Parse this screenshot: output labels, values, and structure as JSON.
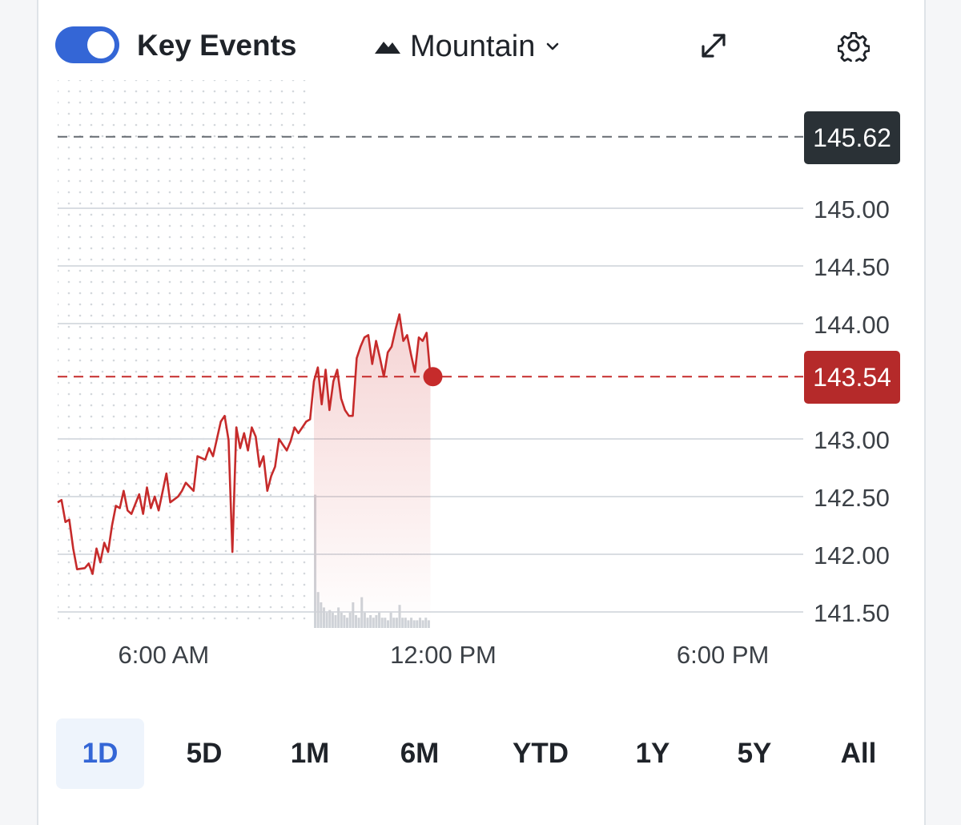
{
  "toolbar": {
    "key_events_label": "Key Events",
    "key_events_enabled": true,
    "chart_type_label": "Mountain",
    "expand_icon": "expand-icon",
    "settings_icon": "gear-icon",
    "mountain_icon": "mountain-icon",
    "dropdown_icon": "chevron-down-icon"
  },
  "colors": {
    "accent": "#3466d6",
    "line": "#c62b2b",
    "current_badge": "#b52a2a",
    "high_badge": "#2a3136",
    "grid": "#d9dde2",
    "volume": "#cfd3d8"
  },
  "badges": {
    "high": "145.62",
    "current": "143.54"
  },
  "chart_data": {
    "type": "area",
    "x_axis_type": "time",
    "x_ticks": [
      "6:00 AM",
      "12:00 PM",
      "6:00 PM"
    ],
    "y_ticks": [
      "145.00",
      "144.50",
      "144.00",
      "143.00",
      "142.50",
      "142.00",
      "141.50"
    ],
    "ylim": [
      141.5,
      145.62
    ],
    "xlim": [
      "4:00 AM",
      "8:00 PM"
    ],
    "grid": true,
    "reference_lines": [
      {
        "value": 145.62,
        "style": "dashed"
      },
      {
        "value": 143.54,
        "style": "dashed"
      }
    ],
    "premarket_shaded_until": "9:30 AM",
    "area_fill_from": "9:30 AM",
    "series": [
      {
        "x": [
          "4:00 AM",
          "4:05 AM",
          "4:10 AM",
          "4:15 AM",
          "4:20 AM",
          "4:25 AM",
          "4:35 AM",
          "4:40 AM",
          "4:45 AM",
          "4:50 AM",
          "4:55 AM",
          "5:00 AM",
          "5:05 AM",
          "5:10 AM",
          "5:15 AM",
          "5:20 AM",
          "5:25 AM",
          "5:30 AM",
          "5:35 AM",
          "5:45 AM",
          "5:50 AM",
          "5:55 AM",
          "6:00 AM",
          "6:05 AM",
          "6:10 AM",
          "6:20 AM",
          "6:25 AM",
          "6:35 AM",
          "6:40 AM",
          "6:45 AM",
          "6:55 AM",
          "7:00 AM",
          "7:10 AM",
          "7:15 AM",
          "7:20 AM",
          "7:30 AM",
          "7:35 AM",
          "7:40 AM",
          "7:45 AM",
          "7:50 AM",
          "7:55 AM",
          "8:00 AM",
          "8:05 AM",
          "8:10 AM",
          "8:15 AM",
          "8:20 AM",
          "8:25 AM",
          "8:30 AM",
          "8:35 AM",
          "8:40 AM",
          "8:45 AM",
          "8:50 AM",
          "8:55 AM",
          "9:00 AM",
          "9:05 AM",
          "9:10 AM",
          "9:15 AM",
          "9:20 AM",
          "9:25 AM",
          "9:30 AM",
          "9:35 AM",
          "9:40 AM",
          "9:45 AM",
          "9:50 AM",
          "9:55 AM",
          "10:00 AM",
          "10:05 AM",
          "10:10 AM",
          "10:15 AM",
          "10:20 AM",
          "10:25 AM",
          "10:30 AM",
          "10:35 AM",
          "10:40 AM",
          "10:45 AM",
          "10:50 AM",
          "10:55 AM",
          "11:00 AM",
          "11:05 AM",
          "11:10 AM",
          "11:15 AM",
          "11:20 AM",
          "11:25 AM",
          "11:30 AM",
          "11:35 AM",
          "11:40 AM",
          "11:45 AM",
          "11:50 AM",
          "11:55 AM",
          "12:00 PM"
        ],
        "y": [
          142.45,
          142.47,
          142.28,
          142.3,
          142.05,
          141.87,
          141.88,
          141.92,
          141.83,
          142.05,
          141.93,
          142.1,
          142.02,
          142.25,
          142.42,
          142.4,
          142.55,
          142.38,
          142.35,
          142.52,
          142.35,
          142.58,
          142.4,
          142.5,
          142.38,
          142.7,
          142.45,
          142.5,
          142.55,
          142.62,
          142.55,
          142.85,
          142.82,
          142.92,
          142.85,
          143.15,
          143.2,
          142.99,
          142.02,
          143.1,
          142.92,
          143.05,
          142.9,
          143.1,
          143.02,
          142.76,
          142.85,
          142.55,
          142.68,
          142.76,
          143.0,
          142.95,
          142.9,
          142.98,
          143.1,
          143.05,
          143.1,
          143.15,
          143.17,
          143.5,
          143.62,
          143.3,
          143.6,
          143.25,
          143.5,
          143.6,
          143.35,
          143.25,
          143.2,
          143.2,
          143.7,
          143.8,
          143.88,
          143.9,
          143.65,
          143.85,
          143.7,
          143.54,
          143.75,
          143.8,
          143.95,
          144.08,
          143.85,
          143.9,
          143.73,
          143.58,
          143.88,
          143.85,
          143.92,
          143.54
        ]
      }
    ],
    "volume": {
      "x_start": "9:30 AM",
      "x_end": "12:00 PM",
      "values": [
        2.6,
        0.7,
        0.5,
        0.4,
        0.3,
        0.35,
        0.3,
        0.25,
        0.4,
        0.3,
        0.25,
        0.2,
        0.3,
        0.5,
        0.25,
        0.2,
        0.6,
        0.3,
        0.2,
        0.25,
        0.2,
        0.25,
        0.3,
        0.2,
        0.2,
        0.15,
        0.3,
        0.2,
        0.2,
        0.45,
        0.2,
        0.2,
        0.15,
        0.2,
        0.15,
        0.15,
        0.2,
        0.15,
        0.2,
        0.15
      ]
    }
  },
  "ranges": [
    "1D",
    "5D",
    "1M",
    "6M",
    "YTD",
    "1Y",
    "5Y",
    "All"
  ],
  "active_range": "1D"
}
